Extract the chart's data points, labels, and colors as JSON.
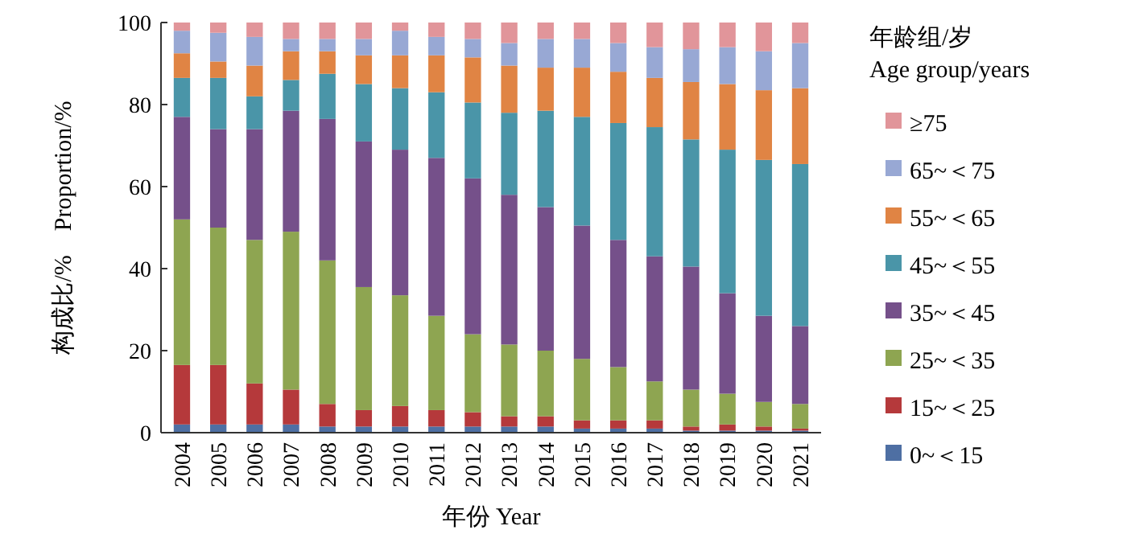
{
  "chart_data": {
    "type": "bar",
    "stacked": true,
    "xlabel": "年份  Year",
    "ylabel": "构成比/%    Proportion/%",
    "legend_title": "年龄组/岁\nAge group/years",
    "legend": "right",
    "categories": [
      "2004",
      "2005",
      "2006",
      "2007",
      "2008",
      "2009",
      "2010",
      "2011",
      "2012",
      "2013",
      "2014",
      "2015",
      "2016",
      "2017",
      "2018",
      "2019",
      "2020",
      "2021"
    ],
    "ylim": [
      0,
      100
    ],
    "yticks": [
      0,
      20,
      40,
      60,
      80,
      100
    ],
    "series": [
      {
        "name": "0~＜15",
        "color": "#4e6fa3",
        "values": [
          2,
          2,
          2,
          2,
          1.5,
          1.5,
          1.5,
          1.5,
          1.5,
          1.5,
          1.5,
          1,
          1,
          1,
          0.5,
          0.5,
          0.5,
          0.5
        ]
      },
      {
        "name": "15~＜25",
        "color": "#b5393b",
        "values": [
          14.5,
          14.5,
          10,
          8.5,
          5.5,
          4,
          5,
          4,
          3.5,
          2.5,
          2.5,
          2,
          2,
          2,
          1,
          1.5,
          1,
          0.5
        ]
      },
      {
        "name": "25~＜35",
        "color": "#8ea551",
        "values": [
          35.5,
          33.5,
          35,
          38.5,
          35,
          30,
          27,
          23,
          19,
          17.5,
          16,
          15,
          13,
          9.5,
          9,
          7.5,
          6,
          6
        ]
      },
      {
        "name": "35~＜45",
        "color": "#75508a",
        "values": [
          25,
          24,
          27,
          29.5,
          34.5,
          35.5,
          35.5,
          38.5,
          38,
          36.5,
          35,
          32.5,
          31,
          30.5,
          30,
          24.5,
          21,
          19
        ]
      },
      {
        "name": "45~＜55",
        "color": "#4a95a8",
        "values": [
          9.5,
          12.5,
          8,
          7.5,
          11,
          14,
          15,
          16,
          18.5,
          20,
          23.5,
          26.5,
          28.5,
          31.5,
          31,
          35,
          38,
          39.5
        ]
      },
      {
        "name": "55~＜65",
        "color": "#e08444",
        "values": [
          6,
          4,
          7.5,
          7,
          5.5,
          7,
          8,
          9,
          11,
          11.5,
          10.5,
          12,
          12.5,
          12,
          14,
          16,
          17,
          18.5
        ]
      },
      {
        "name": "65~＜75",
        "color": "#98a8d4",
        "values": [
          5.5,
          7,
          7,
          3,
          3,
          4,
          6,
          4.5,
          4.5,
          5.5,
          7,
          7,
          7,
          7.5,
          8,
          9,
          9.5,
          11
        ]
      },
      {
        "name": "≥75",
        "color": "#e1959a",
        "values": [
          2,
          2.5,
          3.5,
          4,
          4,
          4,
          2,
          3.5,
          4,
          5,
          4,
          4,
          5,
          6,
          6.5,
          6,
          7,
          5
        ]
      }
    ]
  }
}
